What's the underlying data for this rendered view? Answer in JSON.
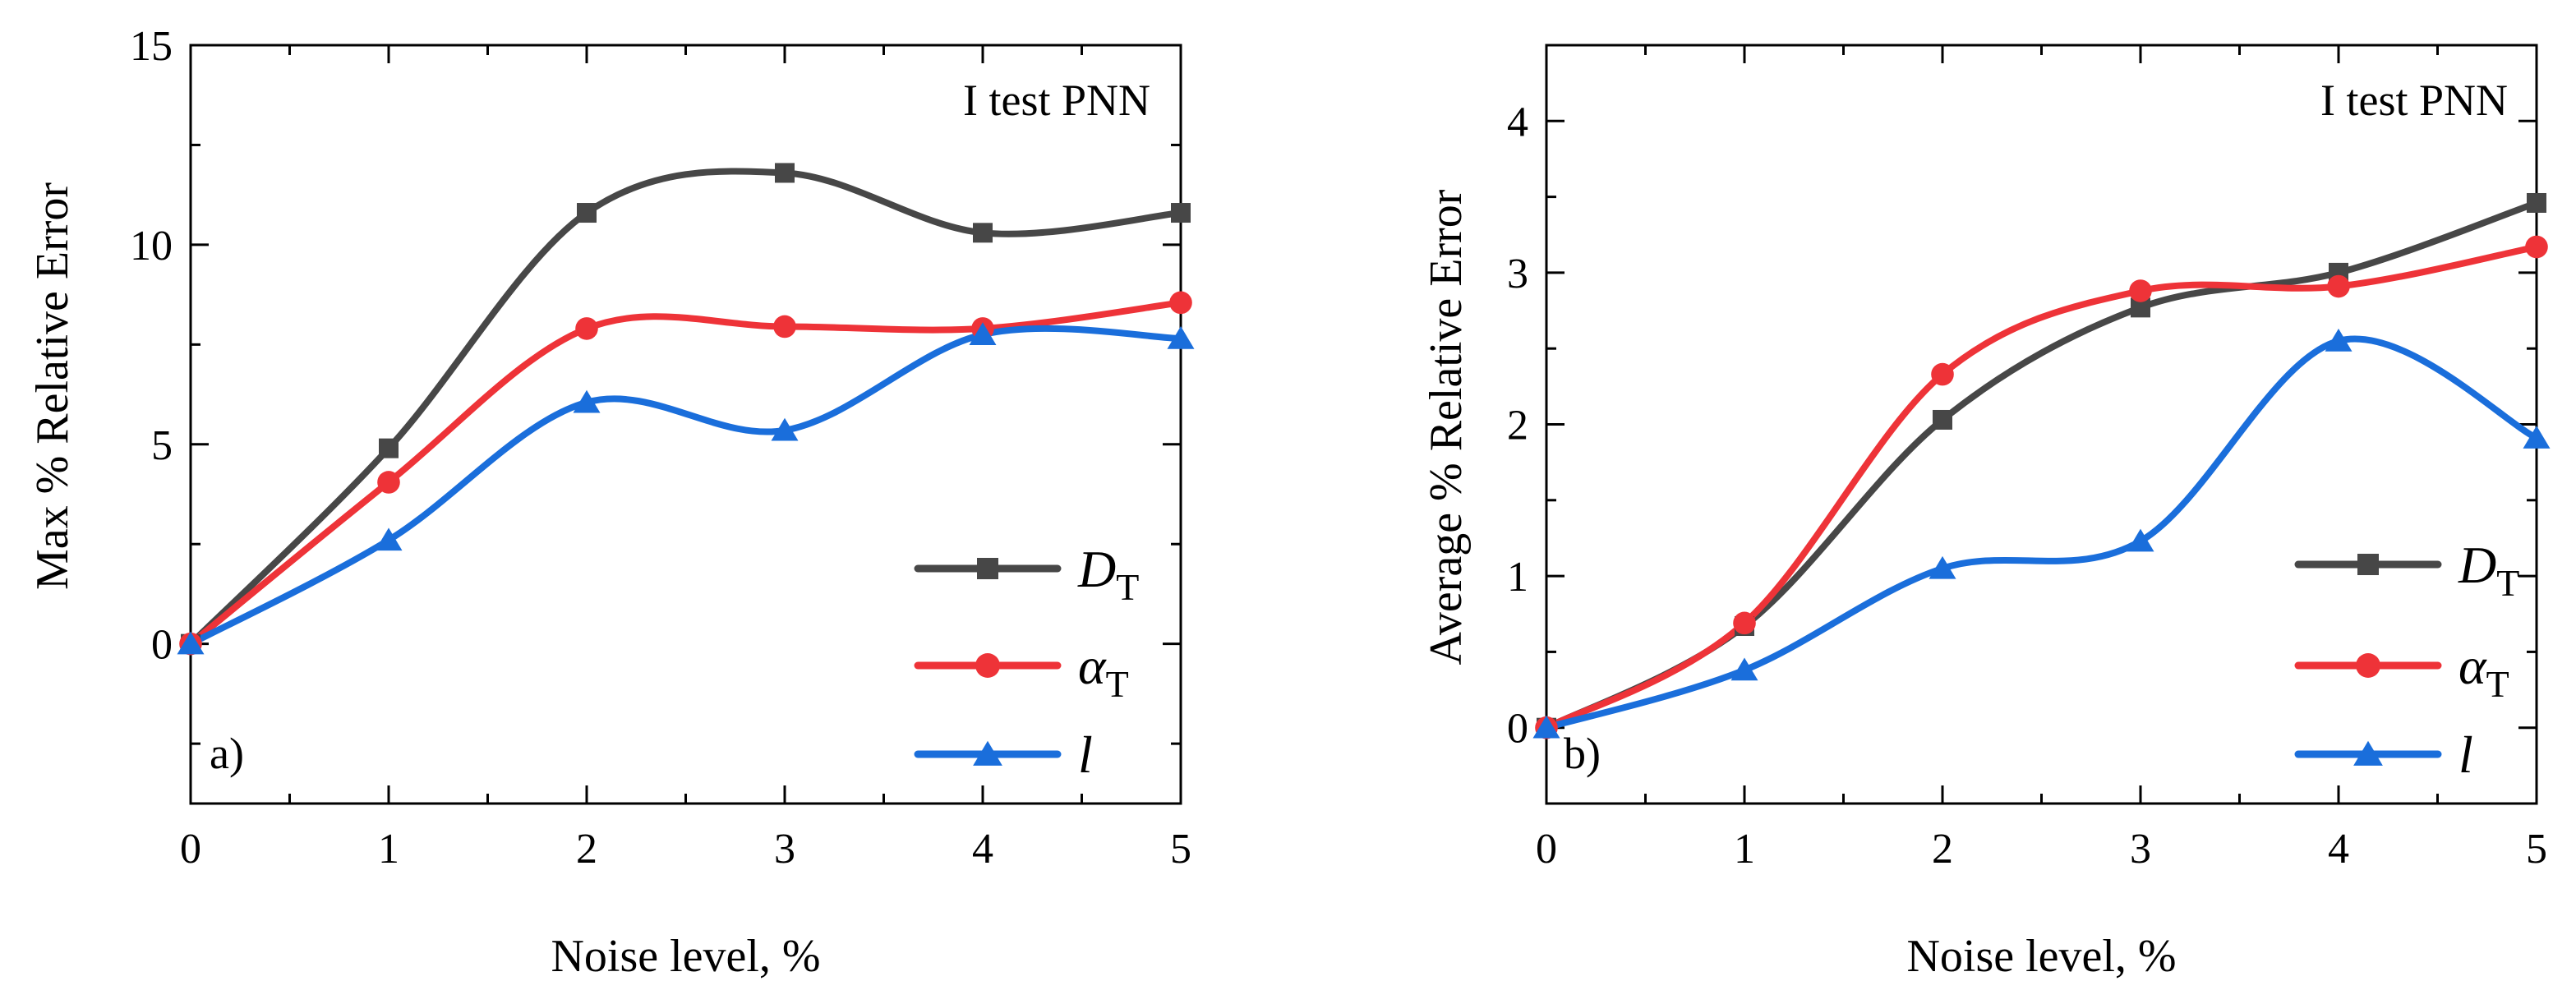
{
  "chart_data": [
    {
      "type": "line",
      "panel_label": "a)",
      "annotation": "I test PNN",
      "xlabel": "Noise level, %",
      "ylabel": "Max % Relative Error",
      "xlim": [
        0,
        5
      ],
      "ylim": [
        -4,
        15
      ],
      "xticks": [
        0,
        1,
        2,
        3,
        4,
        5
      ],
      "yticks": [
        0,
        5,
        10,
        15
      ],
      "x": [
        0,
        1,
        2,
        3,
        4,
        5
      ],
      "series": [
        {
          "name": "D",
          "sub": "T",
          "italic": true,
          "color": "#474747",
          "marker": "square",
          "values": [
            0,
            4.9,
            10.8,
            11.8,
            10.3,
            10.8
          ]
        },
        {
          "name": "α",
          "sub": "T",
          "italic": true,
          "color": "#ee3338",
          "marker": "circle",
          "values": [
            0,
            4.05,
            7.9,
            7.95,
            7.9,
            8.55
          ]
        },
        {
          "name": "l",
          "sub": "",
          "italic": true,
          "color": "#1a6edb",
          "marker": "triangle",
          "values": [
            0,
            2.6,
            6.05,
            5.35,
            7.75,
            7.65
          ]
        }
      ],
      "legend": "bottom-right",
      "grid": false
    },
    {
      "type": "line",
      "panel_label": "b)",
      "annotation": "I test PNN",
      "xlabel": "Noise level, %",
      "ylabel": "Average % Relative Error",
      "xlim": [
        0,
        5
      ],
      "ylim": [
        -0.5,
        4.5
      ],
      "xticks": [
        0,
        1,
        2,
        3,
        4,
        5
      ],
      "yticks": [
        0,
        1,
        2,
        3,
        4
      ],
      "x": [
        0,
        1,
        2,
        3,
        4,
        5
      ],
      "series": [
        {
          "name": "D",
          "sub": "T",
          "italic": true,
          "color": "#474747",
          "marker": "square",
          "values": [
            0,
            0.67,
            2.03,
            2.77,
            3.0,
            3.46
          ]
        },
        {
          "name": "α",
          "sub": "T",
          "italic": true,
          "color": "#ee3338",
          "marker": "circle",
          "values": [
            0,
            0.69,
            2.33,
            2.88,
            2.91,
            3.17
          ]
        },
        {
          "name": "l",
          "sub": "",
          "italic": true,
          "color": "#1a6edb",
          "marker": "triangle",
          "values": [
            0,
            0.38,
            1.05,
            1.23,
            2.55,
            1.91
          ]
        }
      ],
      "legend": "bottom-right",
      "grid": false
    }
  ]
}
